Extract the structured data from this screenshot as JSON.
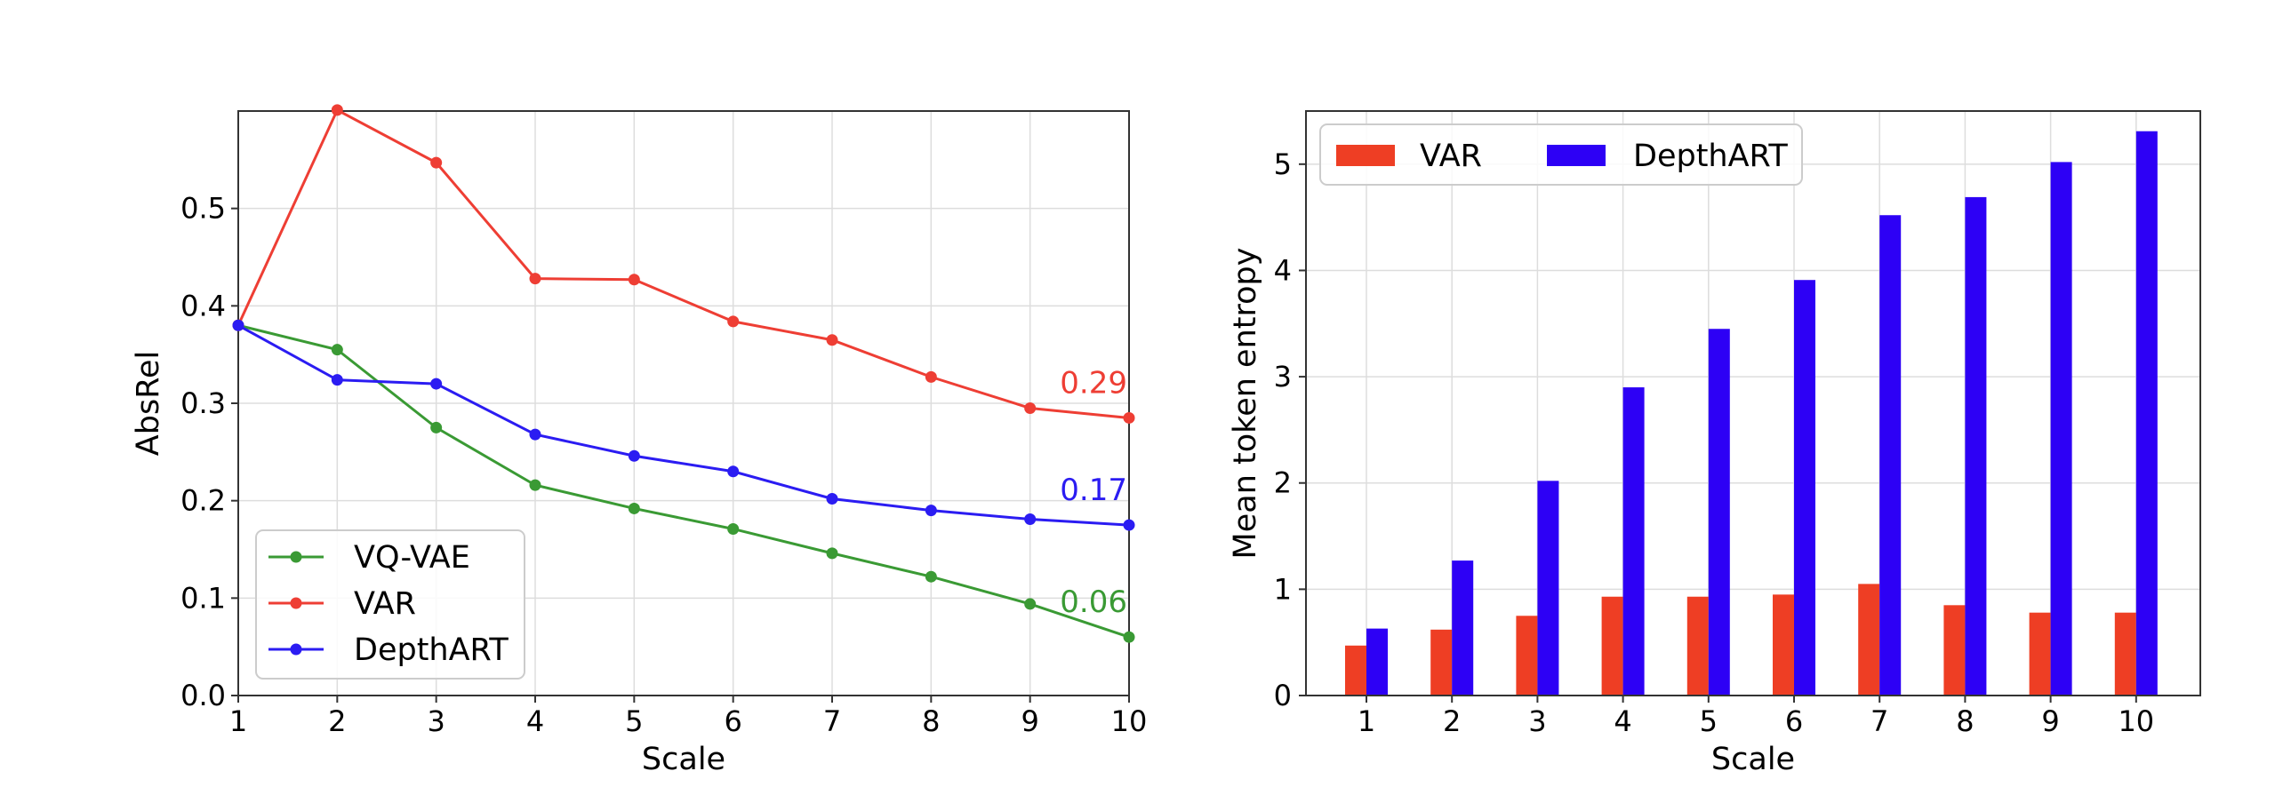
{
  "chart_data": [
    {
      "type": "line",
      "xlabel": "Scale",
      "ylabel": "AbsRel",
      "xlim": [
        1,
        10
      ],
      "ylim": [
        0,
        0.6
      ],
      "x_ticks": [
        "1",
        "2",
        "3",
        "4",
        "5",
        "6",
        "7",
        "8",
        "9",
        "10"
      ],
      "y_ticks": [
        "0.0",
        "0.1",
        "0.2",
        "0.3",
        "0.4",
        "0.5"
      ],
      "x": [
        1,
        2,
        3,
        4,
        5,
        6,
        7,
        8,
        9,
        10
      ],
      "grid": true,
      "legend": "bottom-left",
      "series": [
        {
          "name": "VQ-VAE",
          "color": "#3a9a34",
          "values": [
            0.38,
            0.355,
            0.275,
            0.216,
            0.192,
            0.171,
            0.146,
            0.122,
            0.094,
            0.06
          ],
          "end_label": "0.06"
        },
        {
          "name": "VAR",
          "color": "#ee3e34",
          "values": [
            0.38,
            0.601,
            0.547,
            0.428,
            0.427,
            0.384,
            0.365,
            0.327,
            0.295,
            0.285
          ],
          "end_label": "0.29"
        },
        {
          "name": "DepthART",
          "color": "#2b1cf2",
          "values": [
            0.38,
            0.324,
            0.32,
            0.268,
            0.246,
            0.23,
            0.202,
            0.19,
            0.181,
            0.175
          ],
          "end_label": "0.17"
        }
      ]
    },
    {
      "type": "bar",
      "xlabel": "Scale",
      "ylabel": "Mean token entropy",
      "categories": [
        "1",
        "2",
        "3",
        "4",
        "5",
        "6",
        "7",
        "8",
        "9",
        "10"
      ],
      "y_ticks": [
        "0",
        "1",
        "2",
        "3",
        "4",
        "5"
      ],
      "ylim": [
        0,
        5.5
      ],
      "grid": true,
      "legend": "top-left",
      "series": [
        {
          "name": "VAR",
          "color": "#ee3e24",
          "values": [
            0.47,
            0.62,
            0.75,
            0.93,
            0.93,
            0.95,
            1.05,
            0.85,
            0.78,
            0.78
          ]
        },
        {
          "name": "DepthART",
          "color": "#2d00f5",
          "values": [
            0.63,
            1.27,
            2.02,
            2.9,
            3.45,
            3.91,
            4.52,
            4.69,
            5.02,
            5.31
          ]
        }
      ]
    }
  ]
}
